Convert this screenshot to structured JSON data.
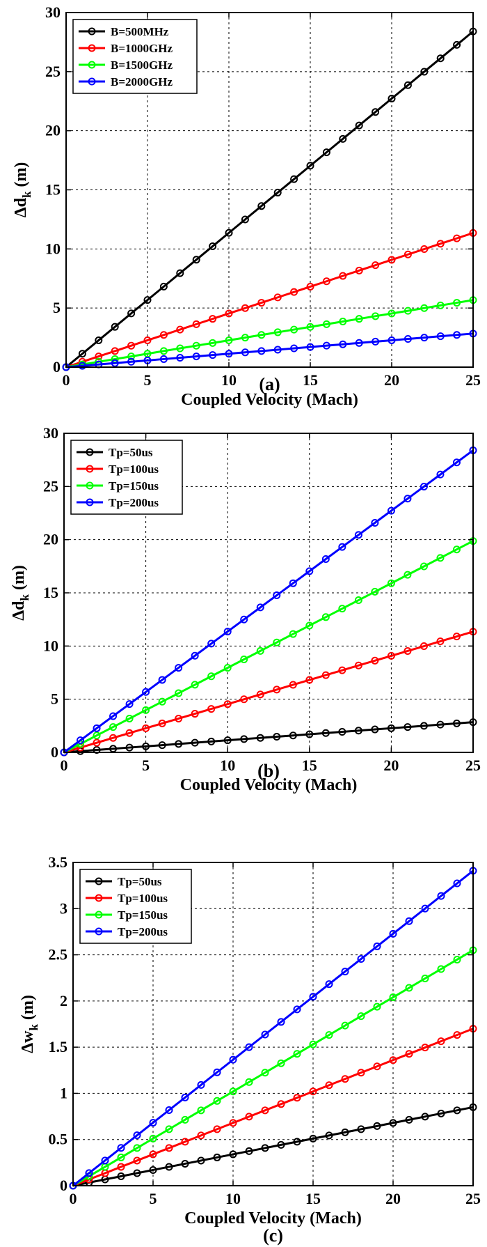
{
  "chart_data": [
    {
      "type": "line",
      "caption": "(a)",
      "xlabel": "Coupled Velocity (Mach)",
      "ylabel": "Δd",
      "ylabel_sub": "k",
      "ylabel_unit": "(m)",
      "xlim": [
        0,
        25
      ],
      "ylim": [
        0,
        30
      ],
      "xticks": [
        0,
        5,
        10,
        15,
        20,
        25
      ],
      "yticks": [
        0,
        5,
        10,
        15,
        20,
        25,
        30
      ],
      "grid": true,
      "legend_position": "top-left",
      "x": [
        0,
        1,
        2,
        3,
        4,
        5,
        6,
        7,
        8,
        9,
        10,
        11,
        12,
        13,
        14,
        15,
        16,
        17,
        18,
        19,
        20,
        21,
        22,
        23,
        24,
        25
      ],
      "series": [
        {
          "name": "B=500MHz",
          "color": "#000000",
          "slope": 1.136
        },
        {
          "name": "B=1000GHz",
          "color": "#ff0000",
          "slope": 0.454
        },
        {
          "name": "B=1500GHz",
          "color": "#00ff00",
          "slope": 0.227
        },
        {
          "name": "B=2000GHz",
          "color": "#0000ff",
          "slope": 0.1136
        }
      ]
    },
    {
      "type": "line",
      "caption": "(b)",
      "xlabel": "Coupled Velocity (Mach)",
      "ylabel": "Δd",
      "ylabel_sub": "k",
      "ylabel_unit": "(m)",
      "xlim": [
        0,
        25
      ],
      "ylim": [
        0,
        30
      ],
      "xticks": [
        0,
        5,
        10,
        15,
        20,
        25
      ],
      "yticks": [
        0,
        5,
        10,
        15,
        20,
        25,
        30
      ],
      "grid": true,
      "legend_position": "top-left",
      "x": [
        0,
        1,
        2,
        3,
        4,
        5,
        6,
        7,
        8,
        9,
        10,
        11,
        12,
        13,
        14,
        15,
        16,
        17,
        18,
        19,
        20,
        21,
        22,
        23,
        24,
        25
      ],
      "series": [
        {
          "name": "Tp=50us",
          "color": "#000000",
          "slope": 0.1136
        },
        {
          "name": "Tp=100us",
          "color": "#ff0000",
          "slope": 0.454
        },
        {
          "name": "Tp=150us",
          "color": "#00ff00",
          "slope": 0.795
        },
        {
          "name": "Tp=200us",
          "color": "#0000ff",
          "slope": 1.136
        }
      ]
    },
    {
      "type": "line",
      "caption": "(c)",
      "xlabel": "Coupled Velocity (Mach)",
      "ylabel": "Δw",
      "ylabel_sub": "k",
      "ylabel_unit": "(m)",
      "xlim": [
        0,
        25
      ],
      "ylim": [
        0,
        3.5
      ],
      "xticks": [
        0,
        5,
        10,
        15,
        20,
        25
      ],
      "yticks": [
        0,
        0.5,
        1,
        1.5,
        2,
        2.5,
        3,
        3.5
      ],
      "grid": true,
      "legend_position": "top-left",
      "x": [
        0,
        1,
        2,
        3,
        4,
        5,
        6,
        7,
        8,
        9,
        10,
        11,
        12,
        13,
        14,
        15,
        16,
        17,
        18,
        19,
        20,
        21,
        22,
        23,
        24,
        25
      ],
      "series": [
        {
          "name": "Tp=50us",
          "color": "#000000",
          "slope": 0.034
        },
        {
          "name": "Tp=100us",
          "color": "#ff0000",
          "slope": 0.068
        },
        {
          "name": "Tp=150us",
          "color": "#00ff00",
          "slope": 0.102
        },
        {
          "name": "Tp=200us",
          "color": "#0000ff",
          "slope": 0.1364
        }
      ]
    }
  ]
}
